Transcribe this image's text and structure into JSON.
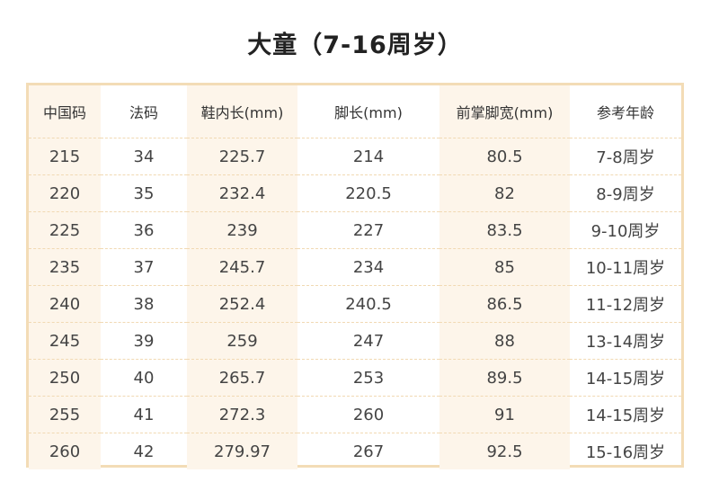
{
  "title": "大童（7-16周岁）",
  "headers": [
    "中国码",
    "法码",
    "鞋内长(mm)",
    "脚长(mm)",
    "前掌脚宽(mm)",
    "参考年龄"
  ],
  "rows": [
    [
      "215",
      "34",
      "225.7",
      "214",
      "80.5",
      "7-8周岁"
    ],
    [
      "220",
      "35",
      "232.4",
      "220.5",
      "82",
      "8-9周岁"
    ],
    [
      "225",
      "36",
      "239",
      "227",
      "83.5",
      "9-10周岁"
    ],
    [
      "235",
      "37",
      "245.7",
      "234",
      "85",
      "10-11周岁"
    ],
    [
      "240",
      "38",
      "252.4",
      "240.5",
      "86.5",
      "11-12周岁"
    ],
    [
      "245",
      "39",
      "259",
      "247",
      "88",
      "13-14周岁"
    ],
    [
      "250",
      "40",
      "265.7",
      "253",
      "89.5",
      "14-15周岁"
    ],
    [
      "255",
      "41",
      "272.3",
      "260",
      "91",
      "14-15周岁"
    ],
    [
      "260",
      "42",
      "279.97",
      "267",
      "92.5",
      "15-16周岁"
    ]
  ],
  "colors": {
    "border": "#f3dcb6",
    "shaded_column": "#fdf5ea",
    "divider": "#f1d9b3"
  }
}
